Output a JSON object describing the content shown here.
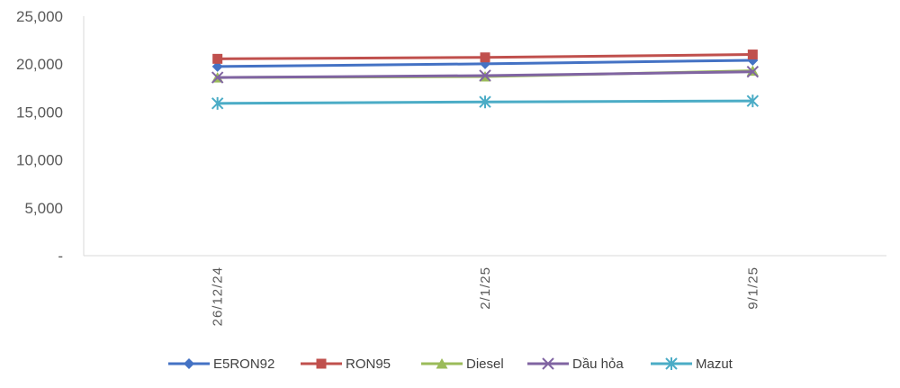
{
  "chart_data": {
    "type": "line",
    "title": "",
    "xlabel": "",
    "ylabel": "",
    "categories": [
      "26/12/24",
      "2/1/25",
      "9/1/25"
    ],
    "ylim": [
      0,
      25000
    ],
    "yticks": [
      {
        "value": 0,
        "label": "-"
      },
      {
        "value": 5000,
        "label": "5,000"
      },
      {
        "value": 10000,
        "label": "10,000"
      },
      {
        "value": 15000,
        "label": "15,000"
      },
      {
        "value": 20000,
        "label": "20,000"
      },
      {
        "value": 25000,
        "label": "25,000"
      }
    ],
    "grid": false,
    "legend_position": "bottom",
    "series": [
      {
        "name": "E5RON92",
        "color": "#4472C4",
        "marker": "diamond",
        "values": [
          19750,
          20030,
          20400
        ]
      },
      {
        "name": "RON95",
        "color": "#C0504D",
        "marker": "square",
        "values": [
          20550,
          20700,
          21000
        ]
      },
      {
        "name": "Diesel",
        "color": "#9BBB59",
        "marker": "triangle",
        "values": [
          18600,
          18700,
          19300
        ]
      },
      {
        "name": "Dầu hỏa",
        "color": "#8064A2",
        "marker": "x",
        "values": [
          18600,
          18800,
          19200
        ]
      },
      {
        "name": "Mazut",
        "color": "#4BACC6",
        "marker": "star",
        "values": [
          15900,
          16050,
          16150
        ]
      }
    ]
  }
}
